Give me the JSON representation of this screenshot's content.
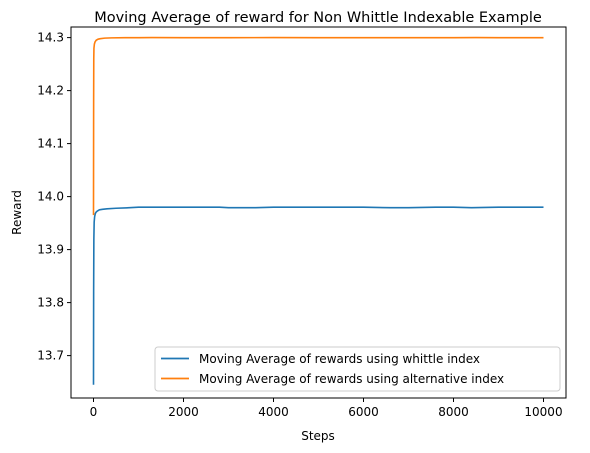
{
  "chart_data": {
    "type": "line",
    "title": "Moving Average of reward for Non Whittle Indexable Example",
    "xlabel": "Steps",
    "ylabel": "Reward",
    "xlim": [
      -500,
      10500
    ],
    "ylim": [
      13.62,
      14.32
    ],
    "xticks": [
      0,
      2000,
      4000,
      6000,
      8000,
      10000
    ],
    "xtick_labels": [
      "0",
      "2000",
      "4000",
      "6000",
      "8000",
      "10000"
    ],
    "yticks": [
      13.7,
      13.8,
      13.9,
      14.0,
      14.1,
      14.2,
      14.3
    ],
    "ytick_labels": [
      "13.7",
      "13.8",
      "13.9",
      "14.0",
      "14.1",
      "14.2",
      "14.3"
    ],
    "grid": false,
    "legend_position": "lower right",
    "series": [
      {
        "name": "Moving Average of rewards using whittle index",
        "color": "#1f77b4",
        "x": [
          0,
          3,
          8,
          15,
          25,
          40,
          60,
          90,
          130,
          200,
          300,
          500,
          800,
          1000,
          1500,
          2000,
          2800,
          3000,
          3600,
          4000,
          4400,
          5000,
          6000,
          6600,
          7000,
          7600,
          8000,
          8400,
          9000,
          9500,
          10000
        ],
        "y": [
          13.645,
          13.82,
          13.92,
          13.952,
          13.962,
          13.968,
          13.971,
          13.973,
          13.975,
          13.976,
          13.977,
          13.978,
          13.979,
          13.98,
          13.98,
          13.98,
          13.98,
          13.979,
          13.979,
          13.98,
          13.98,
          13.98,
          13.98,
          13.979,
          13.979,
          13.98,
          13.98,
          13.979,
          13.98,
          13.98,
          13.98
        ]
      },
      {
        "name": "Moving Average of rewards using alternative index",
        "color": "#ff7f0e",
        "x": [
          0,
          3,
          6,
          10,
          20,
          35,
          60,
          100,
          150,
          250,
          400,
          700,
          1000,
          1300,
          2000,
          3000,
          4000,
          5000,
          6000,
          7000,
          8000,
          8500,
          9000,
          10000
        ],
        "y": [
          13.965,
          14.18,
          14.26,
          14.28,
          14.288,
          14.292,
          14.295,
          14.297,
          14.298,
          14.299,
          14.2995,
          14.2998,
          14.2999,
          14.3,
          14.2998,
          14.2999,
          14.3,
          14.2999,
          14.2999,
          14.2999,
          14.2999,
          14.3,
          14.2999,
          14.2999
        ]
      }
    ]
  }
}
